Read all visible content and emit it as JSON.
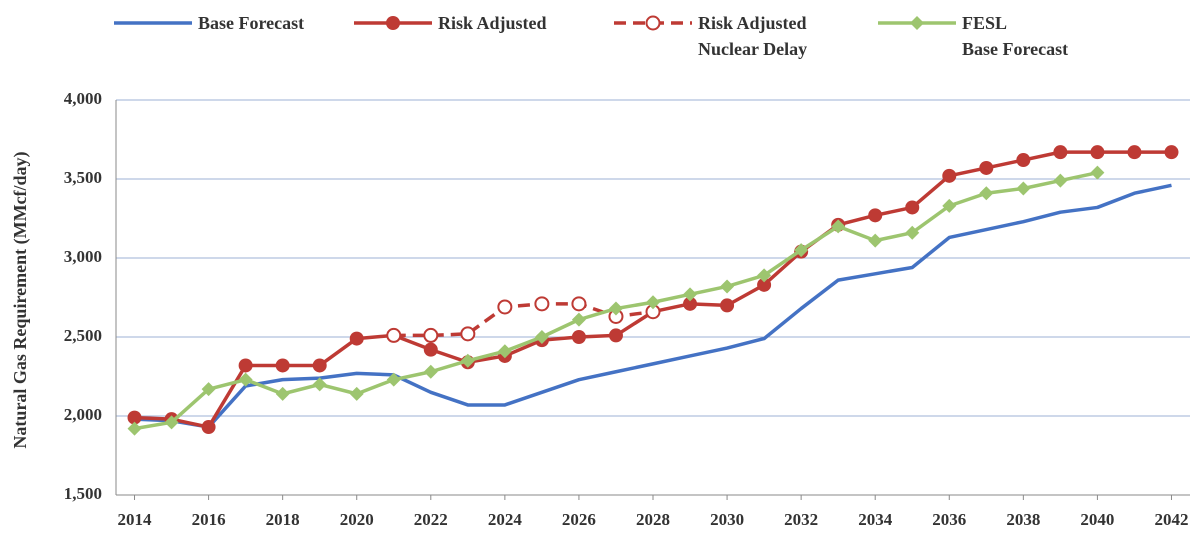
{
  "chart_data": {
    "type": "line",
    "y_label": "Natural Gas Requirement (MMcf/day)",
    "x": [
      2014,
      2015,
      2016,
      2017,
      2018,
      2019,
      2020,
      2021,
      2022,
      2023,
      2024,
      2025,
      2026,
      2027,
      2028,
      2029,
      2030,
      2031,
      2032,
      2033,
      2034,
      2035,
      2036,
      2037,
      2038,
      2039,
      2040,
      2041,
      2042
    ],
    "xlim": [
      2013.5,
      2042.5
    ],
    "xticks": [
      2014,
      2016,
      2018,
      2020,
      2022,
      2024,
      2026,
      2028,
      2030,
      2032,
      2034,
      2036,
      2038,
      2040,
      2042
    ],
    "ylim": [
      1500,
      4000
    ],
    "yticks": [
      {
        "value": 1500,
        "label": "1,500"
      },
      {
        "value": 2000,
        "label": "2,000"
      },
      {
        "value": 2500,
        "label": "2,500"
      },
      {
        "value": 3000,
        "label": "3,000"
      },
      {
        "value": 3500,
        "label": "3,500"
      },
      {
        "value": 4000,
        "label": "4,000"
      }
    ],
    "grid": true,
    "series": [
      {
        "name": "Base Forecast",
        "color": "#4472c4",
        "marker": "none",
        "dash": false,
        "values": [
          1980,
          1970,
          1930,
          2190,
          2230,
          2240,
          2270,
          2260,
          2150,
          2070,
          2070,
          2150,
          2230,
          2280,
          2330,
          2380,
          2430,
          2490,
          2680,
          2860,
          2900,
          2940,
          3130,
          3180,
          3230,
          3290,
          3320,
          3410,
          3460
        ]
      },
      {
        "name": "Risk Adjusted",
        "color": "#be3a34",
        "marker": "circle",
        "dash": false,
        "values": [
          1990,
          1980,
          1930,
          2320,
          2320,
          2320,
          2490,
          2510,
          2420,
          2340,
          2380,
          2480,
          2500,
          2510,
          2660,
          2710,
          2700,
          2830,
          3040,
          3210,
          3270,
          3320,
          3520,
          3570,
          3620,
          3670,
          3670,
          3670,
          3670
        ]
      },
      {
        "name": "Risk Adjusted\nNuclear Delay",
        "color": "#be3a34",
        "marker": "open-circle",
        "dash": true,
        "values": [
          null,
          null,
          null,
          null,
          null,
          null,
          null,
          2510,
          2510,
          2520,
          2690,
          2710,
          2710,
          2630,
          2660,
          null,
          null,
          null,
          null,
          null,
          null,
          null,
          null,
          null,
          null,
          null,
          null,
          null,
          null
        ]
      },
      {
        "name": "FESL\nBase Forecast",
        "color": "#9dc56f",
        "marker": "diamond",
        "dash": false,
        "values": [
          1920,
          1960,
          2170,
          2230,
          2140,
          2200,
          2140,
          2230,
          2280,
          2350,
          2410,
          2500,
          2610,
          2680,
          2720,
          2770,
          2820,
          2890,
          3050,
          3200,
          3110,
          3160,
          3330,
          3410,
          3440,
          3490,
          3540,
          null,
          null
        ]
      }
    ]
  }
}
